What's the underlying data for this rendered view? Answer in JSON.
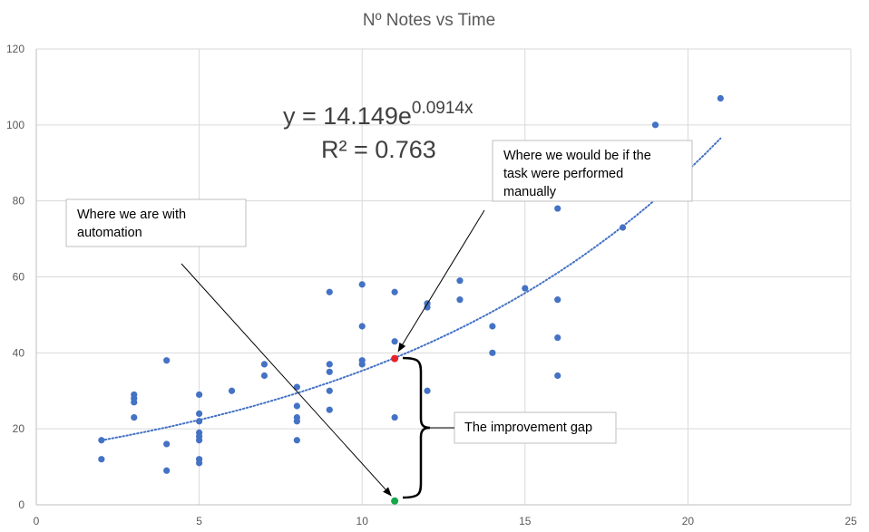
{
  "chart_data": {
    "type": "scatter",
    "title": "Nº Notes vs Time",
    "xlabel": "",
    "ylabel": "",
    "xlim": [
      0,
      25
    ],
    "ylim": [
      0,
      120
    ],
    "x_ticks": [
      "0",
      "5",
      "10",
      "15",
      "20",
      "25"
    ],
    "y_ticks": [
      "0",
      "20",
      "40",
      "60",
      "80",
      "100",
      "120"
    ],
    "grid": true,
    "legend": "none",
    "series": [
      {
        "color": "#4472c4",
        "points": [
          [
            2,
            17
          ],
          [
            2,
            12
          ],
          [
            3,
            29
          ],
          [
            3,
            28
          ],
          [
            3,
            27
          ],
          [
            3,
            23
          ],
          [
            4,
            38
          ],
          [
            4,
            16
          ],
          [
            4,
            9
          ],
          [
            5,
            29
          ],
          [
            5,
            24
          ],
          [
            5,
            22
          ],
          [
            5,
            19
          ],
          [
            5,
            18
          ],
          [
            5,
            17
          ],
          [
            5,
            12
          ],
          [
            5,
            11
          ],
          [
            6,
            30
          ],
          [
            7,
            37
          ],
          [
            7,
            34
          ],
          [
            8,
            31
          ],
          [
            8,
            26
          ],
          [
            8,
            23
          ],
          [
            8,
            22
          ],
          [
            8,
            17
          ],
          [
            9,
            56
          ],
          [
            9,
            37
          ],
          [
            9,
            35
          ],
          [
            9,
            30
          ],
          [
            9,
            25
          ],
          [
            10,
            58
          ],
          [
            10,
            47
          ],
          [
            10,
            38
          ],
          [
            10,
            37
          ],
          [
            11,
            56
          ],
          [
            11,
            43
          ],
          [
            11,
            23
          ],
          [
            12,
            53
          ],
          [
            12,
            52
          ],
          [
            12,
            30
          ],
          [
            13,
            59
          ],
          [
            13,
            54
          ],
          [
            14,
            47
          ],
          [
            14,
            40
          ],
          [
            15,
            57
          ],
          [
            16,
            78
          ],
          [
            16,
            54
          ],
          [
            16,
            44
          ],
          [
            16,
            34
          ],
          [
            18,
            73
          ],
          [
            19,
            100
          ],
          [
            21,
            107
          ]
        ]
      }
    ],
    "trendline": {
      "type": "exponential",
      "a": 14.149,
      "b": 0.0914,
      "x_range": [
        2,
        21
      ],
      "color": "#4472c4",
      "style": "dotted",
      "equation_prefix": "y = 14.149e",
      "equation_exponent": "0.0914x",
      "r_squared_label": "R² = 0.763"
    },
    "highlight_points": [
      {
        "name": "manual",
        "x": 11,
        "y": 38.5,
        "color": "#e8212b"
      },
      {
        "name": "automation",
        "x": 11,
        "y": 1,
        "color": "#15a84a"
      }
    ],
    "annotations": {
      "manual_callout": [
        "Where we would be if the",
        "task were performed",
        "manually"
      ],
      "automation_callout": [
        "Where we are with",
        "automation"
      ],
      "gap_callout": "The improvement gap"
    }
  }
}
